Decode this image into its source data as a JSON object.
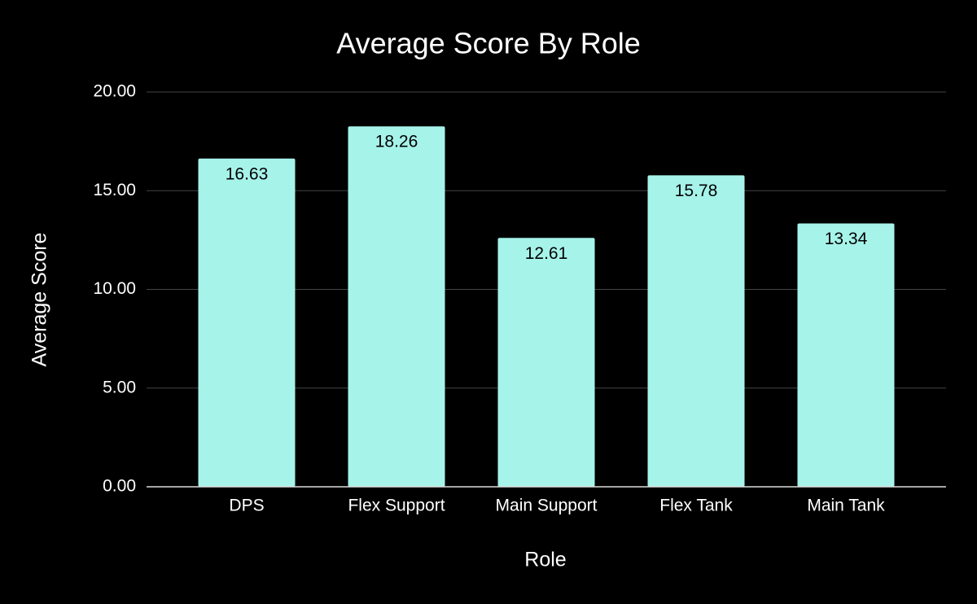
{
  "chart_data": {
    "type": "bar",
    "title": "Average Score By Role",
    "x_label": "Role",
    "y_label": "Average Score",
    "categories": [
      "DPS",
      "Flex Support",
      "Main Support",
      "Flex Tank",
      "Main Tank"
    ],
    "values": [
      16.63,
      18.26,
      12.61,
      15.78,
      13.34
    ],
    "color": "#a6f3ea",
    "ylim": [
      0,
      20
    ],
    "yticks": [
      {
        "value": 0,
        "label": "0.00"
      },
      {
        "value": 5,
        "label": "5.00"
      },
      {
        "value": 10,
        "label": "10.00"
      },
      {
        "value": 15,
        "label": "15.00"
      },
      {
        "value": 20,
        "label": "20.00"
      }
    ],
    "grid": true
  }
}
